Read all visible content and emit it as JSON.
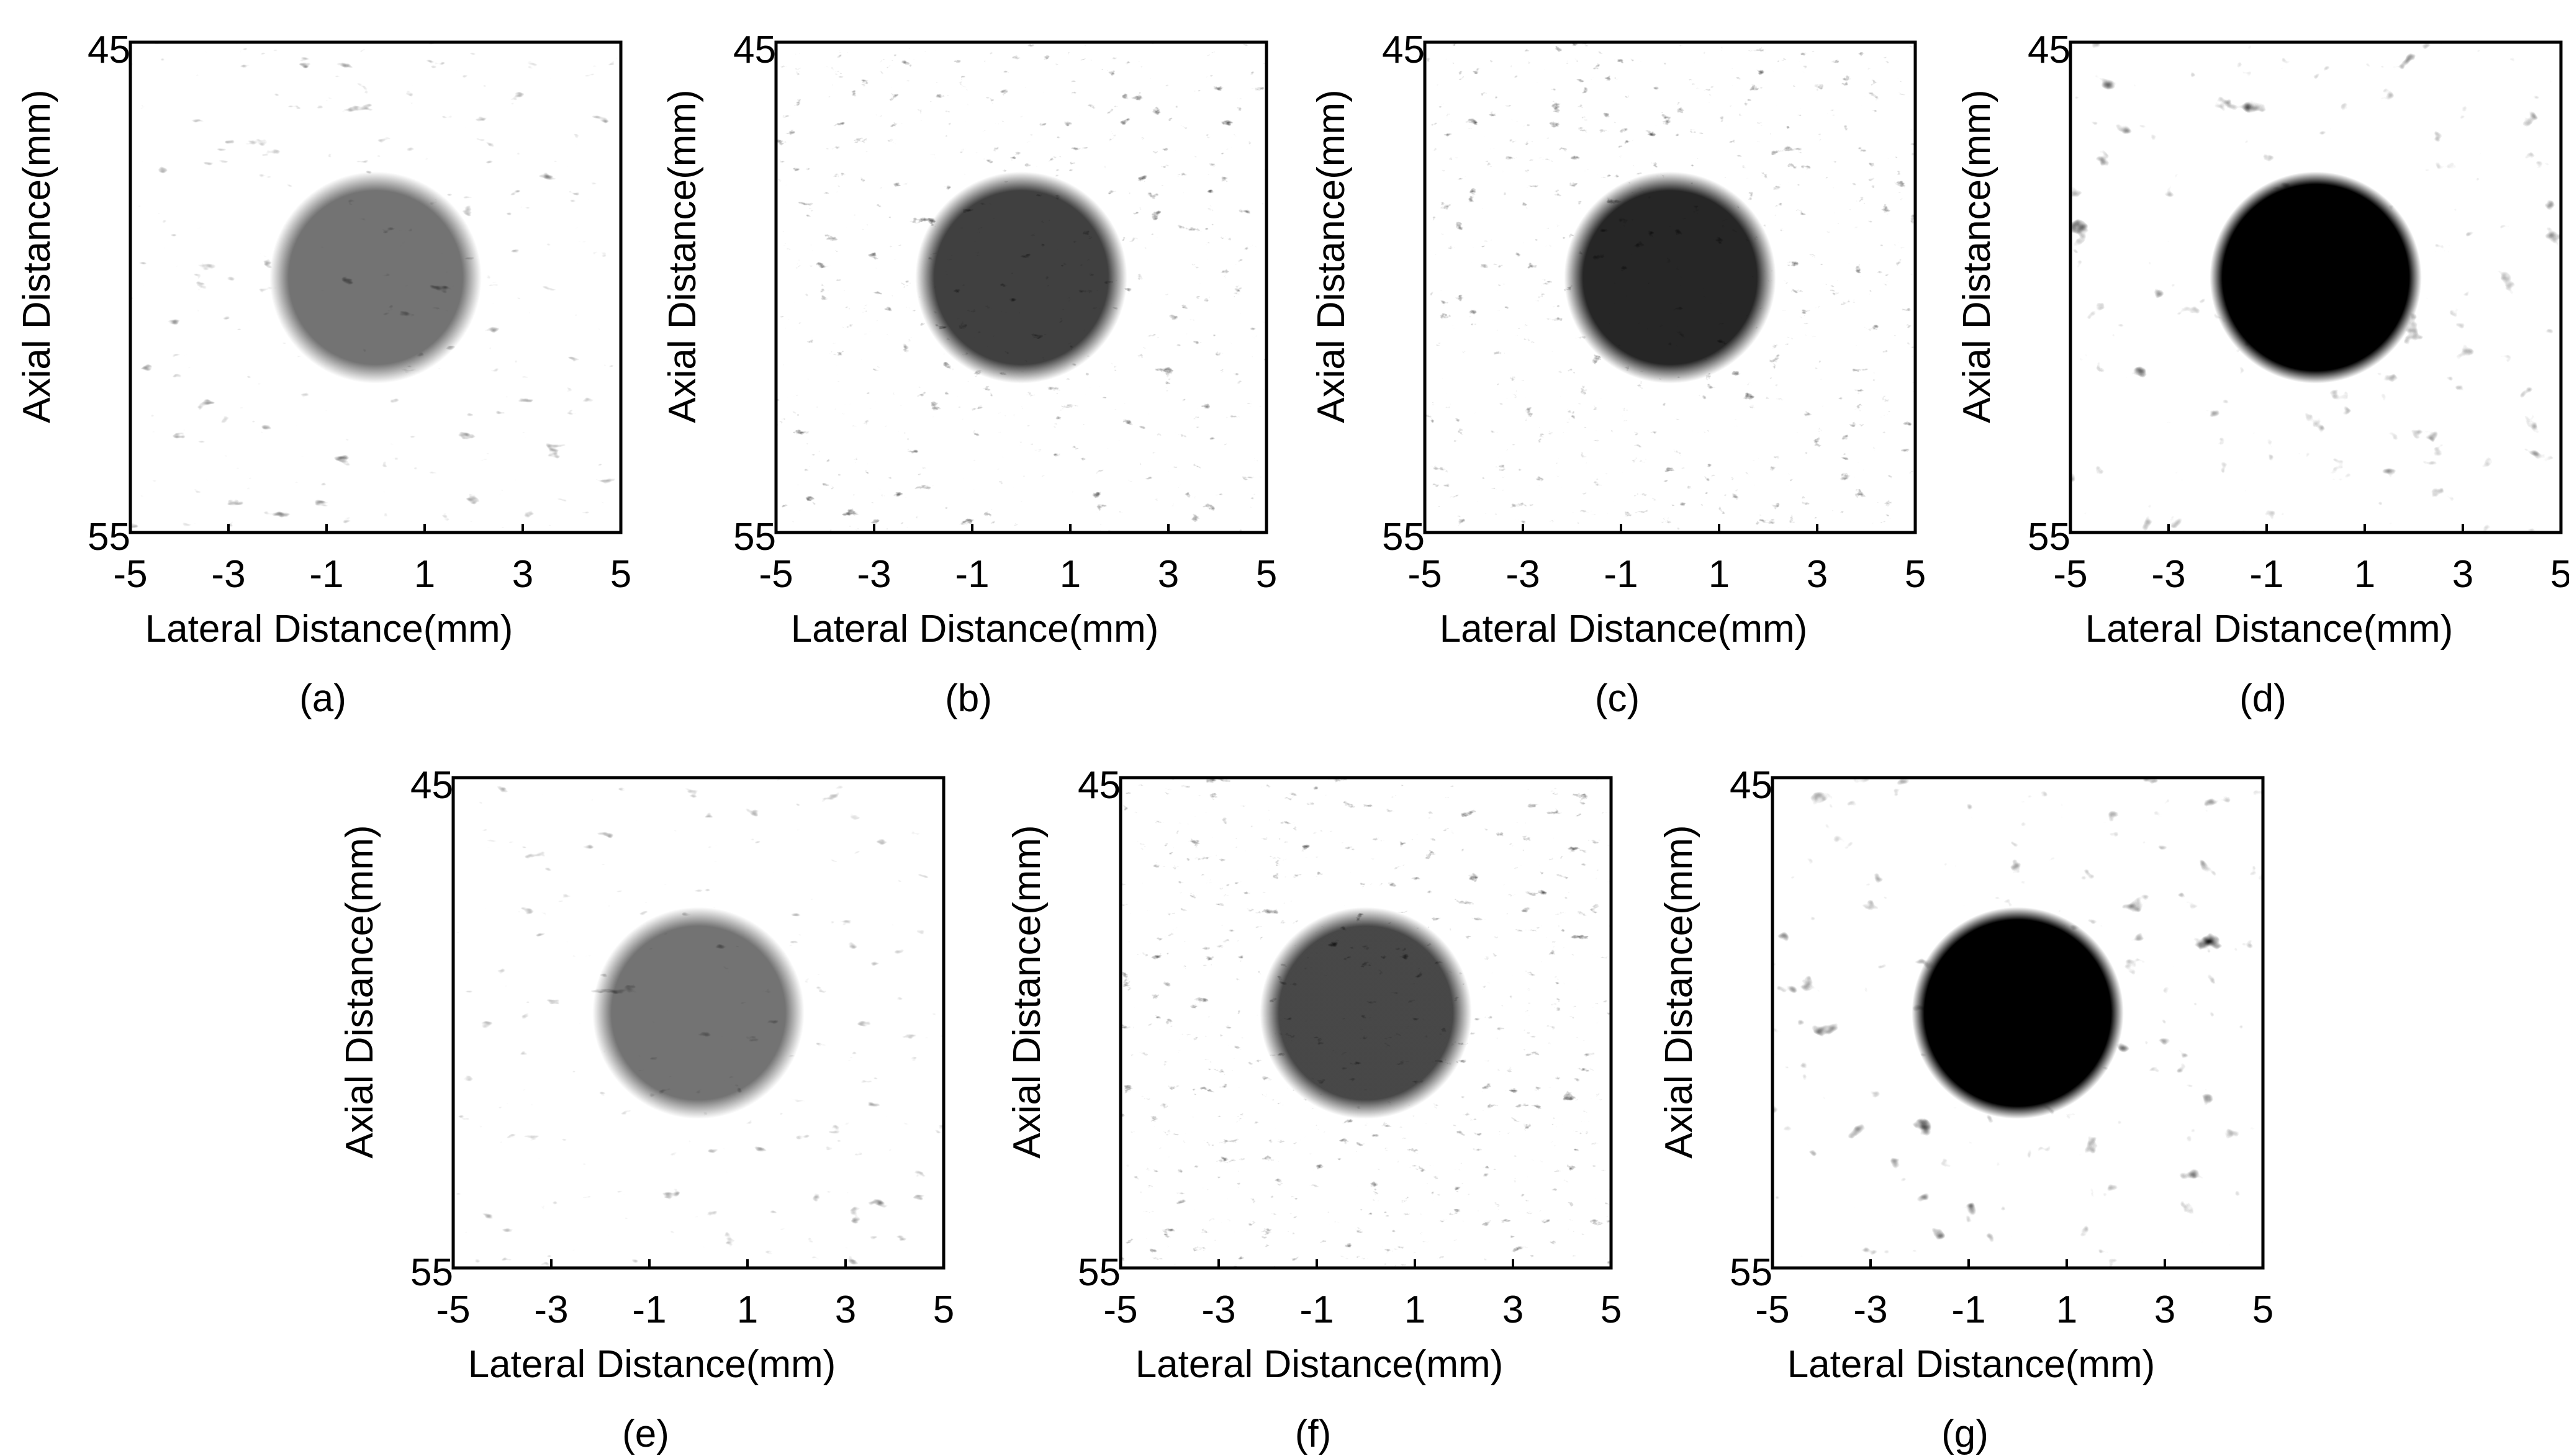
{
  "panels": [
    {
      "caption": "(a)",
      "style": "fine",
      "cyst_darkness": 0.55,
      "speckle_contrast": 0.55
    },
    {
      "caption": "(b)",
      "style": "noisy",
      "cyst_darkness": 0.75,
      "speckle_contrast": 0.75
    },
    {
      "caption": "(c)",
      "style": "noisy",
      "cyst_darkness": 0.85,
      "speckle_contrast": 0.8
    },
    {
      "caption": "(d)",
      "style": "coarse",
      "cyst_darkness": 1.0,
      "speckle_contrast": 0.9
    },
    {
      "caption": "(e)",
      "style": "fine",
      "cyst_darkness": 0.55,
      "speckle_contrast": 0.55
    },
    {
      "caption": "(f)",
      "style": "noisy",
      "cyst_darkness": 0.72,
      "speckle_contrast": 0.75
    },
    {
      "caption": "(g)",
      "style": "coarse",
      "cyst_darkness": 1.0,
      "speckle_contrast": 0.95
    }
  ],
  "axes": {
    "xlabel": "Lateral Distance(mm)",
    "ylabel": "Axial Distance(mm)",
    "xticks": [
      "-5",
      "-3",
      "-1",
      "1",
      "3",
      "5"
    ],
    "ytick_top": "45",
    "ytick_bottom": "55",
    "xlim": [
      -5,
      5
    ],
    "ylim": [
      45,
      55
    ]
  },
  "cyst": {
    "center_lateral_mm": 0,
    "center_axial_mm": 49.8,
    "radius_mm": 2
  },
  "colors": {
    "tissue_light": "#f4f4f4",
    "tissue_dark": "#1a1a1a",
    "frame": "#000000"
  }
}
